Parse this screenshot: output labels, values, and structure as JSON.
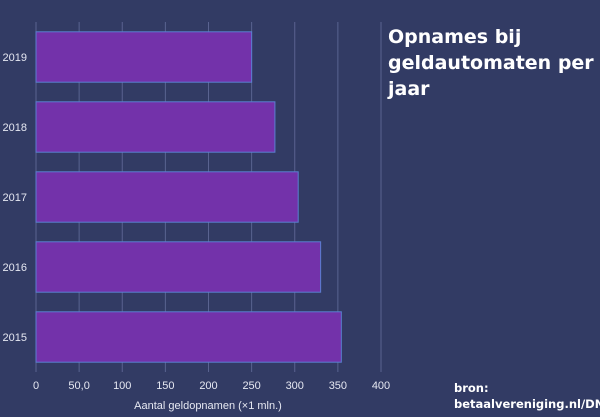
{
  "chart_data": {
    "type": "bar",
    "orientation": "horizontal",
    "title": "Opnames bij geldautomaten per jaar",
    "xlabel": "Aantal geldopnamen (×1 mln.)",
    "ylabel": "",
    "categories": [
      "2019",
      "2018",
      "2017",
      "2016",
      "2015"
    ],
    "values": [
      250,
      277,
      304,
      330,
      354
    ],
    "xlim": [
      0,
      400
    ],
    "xticks": [
      0,
      50,
      100,
      150,
      200,
      250,
      300,
      350,
      400
    ],
    "xtick_labels": [
      "0",
      "50,0",
      "100",
      "150",
      "200",
      "250",
      "300",
      "350",
      "400"
    ],
    "grid": true,
    "bar_color": "#7332aa",
    "bar_edge_color": "#5b7fd1",
    "background_color": "#323b64"
  },
  "source_text_line1": "bron:",
  "source_text_line2": "betaalvereniging.nl/DNB"
}
